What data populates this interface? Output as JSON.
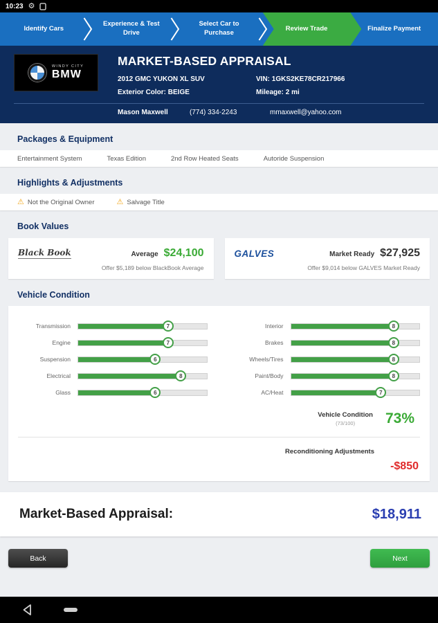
{
  "status_bar": {
    "time": "10:23"
  },
  "stepper": {
    "steps": [
      {
        "label": "Identify Cars",
        "active": false
      },
      {
        "label": "Experience & Test Drive",
        "active": false
      },
      {
        "label": "Select Car to Purchase",
        "active": false
      },
      {
        "label": "Review Trade",
        "active": true
      },
      {
        "label": "Finalize Payment",
        "active": false
      }
    ]
  },
  "header": {
    "dealer_name_top": "WINDY CITY",
    "dealer_name": "BMW",
    "title": "MARKET-BASED APPRAISAL",
    "vehicle": "2012 GMC YUKON XL SUV",
    "vin": "VIN: 1GKS2KE78CR217966",
    "exterior_color": "Exterior Color: BEIGE",
    "mileage": "Mileage: 2 mi",
    "customer_name": "Mason Maxwell",
    "customer_phone": "(774) 334-2243",
    "customer_email": "mmaxwell@yahoo.com"
  },
  "packages": {
    "title": "Packages & Equipment",
    "items": [
      "Entertainment System",
      "Texas Edition",
      "2nd Row Heated Seats",
      "Autoride Suspension"
    ]
  },
  "highlights": {
    "title": "Highlights & Adjustments",
    "items": [
      "Not the Original Owner",
      "Salvage Title"
    ]
  },
  "book_values": {
    "title": "Book Values",
    "cards": [
      {
        "provider": "Black Book",
        "label": "Average",
        "value": "$24,100",
        "value_color": "#3aaa35",
        "note": "Offer $5,189 below BlackBook Average"
      },
      {
        "provider": "GALVES",
        "label": "Market Ready",
        "value": "$27,925",
        "value_color": "#333333",
        "note": "Offer $9,014 below GALVES Market Ready"
      }
    ]
  },
  "condition": {
    "title": "Vehicle Condition",
    "scale_max": 10,
    "left": [
      {
        "label": "Transmission",
        "rating": 7
      },
      {
        "label": "Engine",
        "rating": 7
      },
      {
        "label": "Suspension",
        "rating": 6
      },
      {
        "label": "Electrical",
        "rating": 8
      },
      {
        "label": "Glass",
        "rating": 6
      }
    ],
    "right": [
      {
        "label": "Interior",
        "rating": 8
      },
      {
        "label": "Brakes",
        "rating": 8
      },
      {
        "label": "Wheels/Tires",
        "rating": 8
      },
      {
        "label": "Paint/Body",
        "rating": 8
      },
      {
        "label": "AC/Heat",
        "rating": 7
      }
    ],
    "summary_label": "Vehicle Condition",
    "summary_sub": "(73/100)",
    "summary_percent": "73%",
    "recon_label": "Reconditioning Adjustments",
    "recon_value": "-$850"
  },
  "appraisal": {
    "label": "Market-Based Appraisal:",
    "value": "$18,911"
  },
  "footer": {
    "back_label": "Back",
    "next_label": "Next"
  },
  "colors": {
    "stepper_blue": "#1a6fc0",
    "active_step_green": "#3bab42",
    "header_navy": "#0e2c5c",
    "bar_green": "#43a047",
    "value_green": "#3aaa35",
    "negative_red": "#e02b2b",
    "appraisal_blue": "#2a3eb1",
    "warning_amber": "#f2a71c"
  }
}
